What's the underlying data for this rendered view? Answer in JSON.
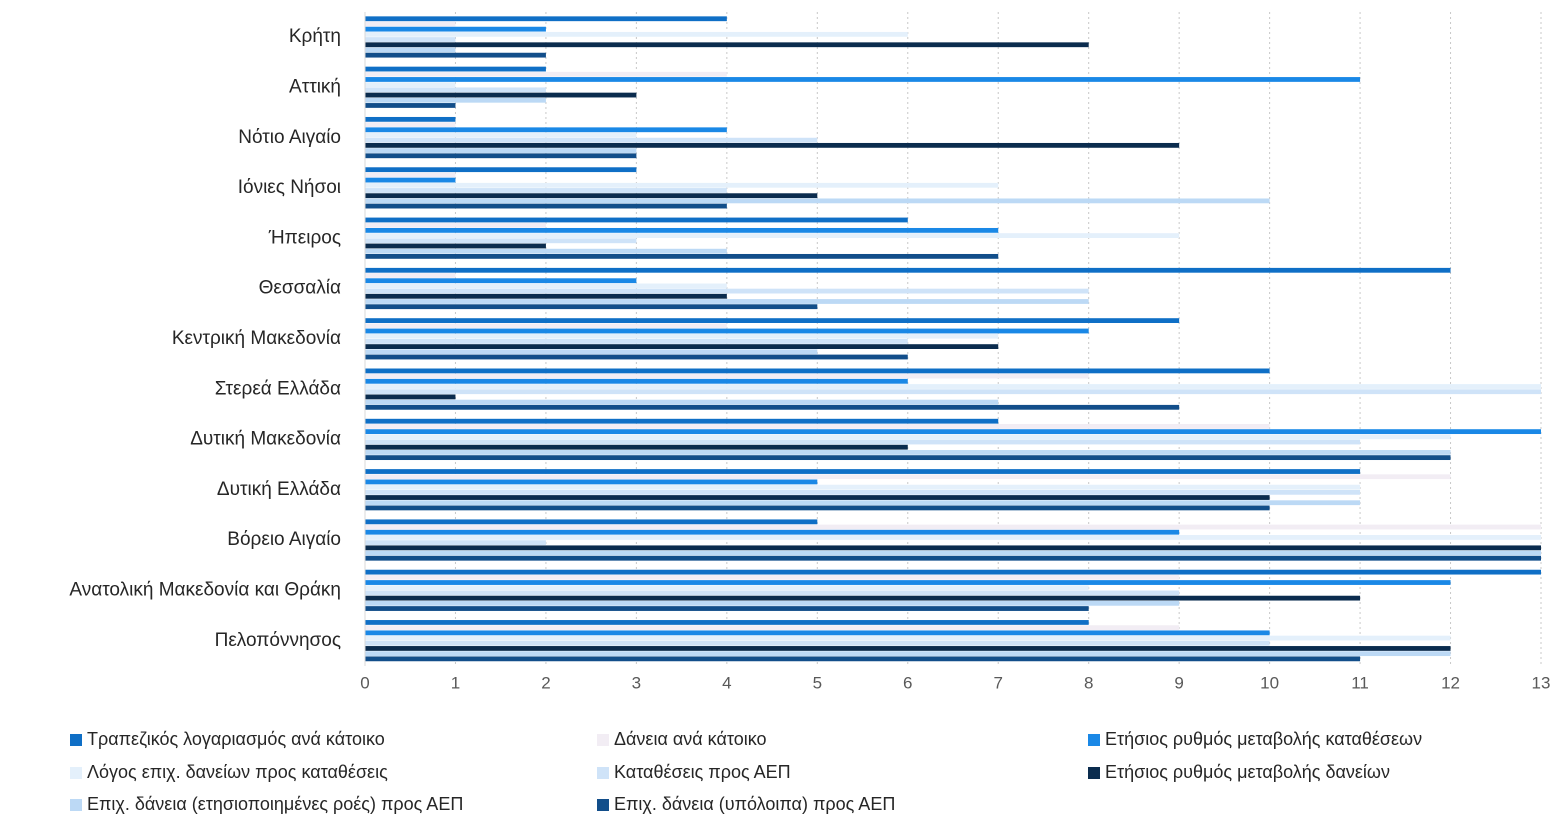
{
  "chart_data": {
    "type": "bar",
    "orientation": "horizontal",
    "categories": [
      "Κρήτη",
      "Αττική",
      "Νότιο Αιγαίο",
      "Ιόνιες Νήσοι",
      "Ήπειρος",
      "Θεσσαλία",
      "Κεντρική Μακεδονία",
      "Στερεά Ελλάδα",
      "Δυτική Μακεδονία",
      "Δυτική Ελλάδα",
      "Βόρειο Αιγαίο",
      "Ανατολική Μακεδονία και Θράκη",
      "Πελοπόννησος"
    ],
    "xlim": [
      0,
      13
    ],
    "xticks": [
      "0",
      "1",
      "2",
      "3",
      "4",
      "5",
      "6",
      "7",
      "8",
      "9",
      "10",
      "11",
      "12",
      "13"
    ],
    "grid": "vertical-dotted",
    "legend_position": "bottom",
    "series": [
      {
        "name": "Τραπεζικός λογαριασμός ανά κάτοικο",
        "color": "#0F6FC6",
        "values": [
          4,
          2,
          1,
          3,
          6,
          12,
          9,
          10,
          7,
          11,
          5,
          13,
          8
        ]
      },
      {
        "name": "Δάνεια ανά κάτοικο",
        "color": "#F2EDF4",
        "values": [
          1,
          4,
          1,
          1,
          2,
          1,
          4,
          8,
          10,
          12,
          13,
          9,
          9
        ]
      },
      {
        "name": "Ετήσιος ρυθμός μεταβολής καταθέσεων",
        "color": "#1A88E6",
        "values": [
          2,
          11,
          4,
          1,
          7,
          3,
          8,
          6,
          13,
          5,
          9,
          12,
          10
        ]
      },
      {
        "name": "Λόγος επιχ. δανείων προς καταθέσεις",
        "color": "#E4F0FB",
        "values": [
          6,
          1,
          3,
          7,
          9,
          4,
          7,
          13,
          12,
          11,
          13,
          8,
          12
        ]
      },
      {
        "name": "Καταθέσεις προς ΑΕΠ",
        "color": "#CFE3F8",
        "values": [
          1,
          2,
          5,
          4,
          3,
          8,
          6,
          13,
          11,
          11,
          2,
          9,
          10
        ]
      },
      {
        "name": "Ετήσιος ρυθμός μεταβολής δανείων",
        "color": "#0B2C4E",
        "values": [
          8,
          3,
          9,
          5,
          2,
          4,
          7,
          1,
          6,
          10,
          13,
          11,
          12
        ]
      },
      {
        "name": "Επιχ. δάνεια (ετησιοποιημένες ροές) προς ΑΕΠ",
        "color": "#BCD9F5",
        "values": [
          1,
          2,
          3,
          10,
          4,
          8,
          5,
          7,
          12,
          11,
          13,
          9,
          12
        ]
      },
      {
        "name": "Επιχ. δάνεια (υπόλοιπα) προς ΑΕΠ",
        "color": "#124E8A",
        "values": [
          2,
          1,
          3,
          4,
          7,
          5,
          6,
          9,
          12,
          10,
          13,
          8,
          11
        ]
      }
    ]
  }
}
